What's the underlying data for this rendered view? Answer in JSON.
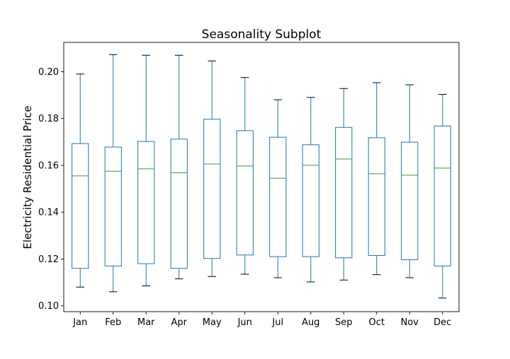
{
  "chart_data": {
    "type": "box",
    "title": "Seasonality Subplot",
    "xlabel": "",
    "ylabel": "Electricity Residential Price",
    "categories": [
      "Jan",
      "Feb",
      "Mar",
      "Apr",
      "May",
      "Jun",
      "Jul",
      "Aug",
      "Sep",
      "Oct",
      "Nov",
      "Dec"
    ],
    "boxes": [
      {
        "min": 0.108,
        "q1": 0.116,
        "median": 0.1555,
        "q3": 0.1693,
        "max": 0.199
      },
      {
        "min": 0.106,
        "q1": 0.117,
        "median": 0.1575,
        "q3": 0.1678,
        "max": 0.2073
      },
      {
        "min": 0.1085,
        "q1": 0.118,
        "median": 0.1585,
        "q3": 0.1702,
        "max": 0.207
      },
      {
        "min": 0.1115,
        "q1": 0.116,
        "median": 0.1568,
        "q3": 0.1712,
        "max": 0.207
      },
      {
        "min": 0.1125,
        "q1": 0.1202,
        "median": 0.1606,
        "q3": 0.1797,
        "max": 0.2046
      },
      {
        "min": 0.1135,
        "q1": 0.1217,
        "median": 0.1597,
        "q3": 0.1748,
        "max": 0.1975
      },
      {
        "min": 0.112,
        "q1": 0.121,
        "median": 0.1545,
        "q3": 0.172,
        "max": 0.188
      },
      {
        "min": 0.1102,
        "q1": 0.121,
        "median": 0.16,
        "q3": 0.1688,
        "max": 0.189
      },
      {
        "min": 0.111,
        "q1": 0.1205,
        "median": 0.1627,
        "q3": 0.1762,
        "max": 0.1928
      },
      {
        "min": 0.1133,
        "q1": 0.1215,
        "median": 0.1564,
        "q3": 0.1718,
        "max": 0.1953
      },
      {
        "min": 0.112,
        "q1": 0.1197,
        "median": 0.1558,
        "q3": 0.1699,
        "max": 0.1944
      },
      {
        "min": 0.1033,
        "q1": 0.117,
        "median": 0.1588,
        "q3": 0.1768,
        "max": 0.1903
      }
    ],
    "ylim": [
      0.0975,
      0.2125
    ],
    "yticks": [
      0.1,
      0.12,
      0.14,
      0.16,
      0.18,
      0.2
    ],
    "ytick_labels": [
      "0.10",
      "0.12",
      "0.14",
      "0.16",
      "0.18",
      "0.20"
    ],
    "grid": false,
    "colors": {
      "box": "#1f77b4",
      "median": "#2ca02c",
      "whisker": "#1f77b4",
      "cap": "#000000",
      "axis": "#000000"
    }
  }
}
